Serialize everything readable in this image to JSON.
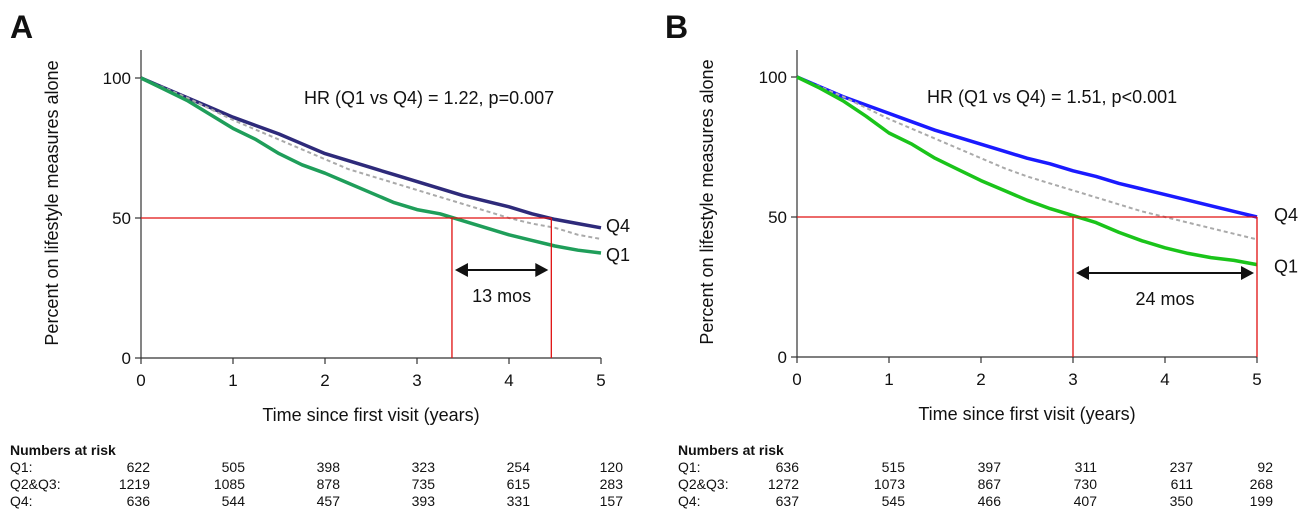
{
  "chart_data": [
    {
      "panel_label": "A",
      "type": "line",
      "xlabel": "Time since first visit (years)",
      "ylabel": "Percent on lifestyle measures alone",
      "xlim": [
        0,
        5
      ],
      "ylim": [
        0,
        100
      ],
      "xticks": [
        "0",
        "1",
        "2",
        "3",
        "4",
        "5"
      ],
      "yticks": [
        "0",
        "50",
        "100"
      ],
      "annotation": "HR (Q1 vs Q4) = 1.22, p=0.007",
      "median_line": {
        "y": 50,
        "x_q1": 3.38,
        "x_q4": 4.46,
        "label": "13 mos"
      },
      "series": [
        {
          "name": "Q4",
          "color": "#2e2a7a",
          "style": "solid",
          "x": [
            0,
            0.25,
            0.5,
            0.75,
            1,
            1.25,
            1.5,
            1.75,
            2,
            2.25,
            2.5,
            2.75,
            3,
            3.25,
            3.5,
            3.75,
            4,
            4.25,
            4.5,
            4.75,
            5
          ],
          "y": [
            100,
            96.5,
            93,
            89.5,
            86,
            83,
            80,
            76.5,
            73,
            70.5,
            68,
            65.5,
            63,
            60.5,
            58,
            56,
            54,
            51.5,
            49.5,
            48,
            46.5
          ]
        },
        {
          "name": "",
          "color": "#aaaaaa",
          "style": "dashed",
          "x": [
            0,
            0.25,
            0.5,
            0.75,
            1,
            1.25,
            1.5,
            1.75,
            2,
            2.25,
            2.5,
            2.75,
            3,
            3.25,
            3.5,
            3.75,
            4,
            4.25,
            4.5,
            4.75,
            5
          ],
          "y": [
            100,
            96.5,
            93,
            89,
            85,
            81.5,
            78,
            74.5,
            71,
            67.5,
            65,
            62.5,
            60,
            57.5,
            55,
            52.5,
            50,
            48,
            46.5,
            44,
            42.5
          ]
        },
        {
          "name": "Q1",
          "color": "#1f9e5a",
          "style": "solid",
          "x": [
            0,
            0.25,
            0.5,
            0.75,
            1,
            1.25,
            1.5,
            1.75,
            2,
            2.25,
            2.5,
            2.75,
            3,
            3.25,
            3.5,
            3.75,
            4,
            4.25,
            4.5,
            4.75,
            5
          ],
          "y": [
            100,
            96,
            92,
            87,
            82,
            78,
            73,
            69,
            66,
            62.5,
            59,
            55.5,
            53,
            51.5,
            49,
            46.5,
            44,
            42,
            40,
            38.5,
            37.5
          ]
        }
      ],
      "numbers_at_risk": {
        "title": "Numbers at risk",
        "rows": [
          {
            "label": "Q1:",
            "values": [
              "622",
              "505",
              "398",
              "323",
              "254",
              "120"
            ]
          },
          {
            "label": "Q2&Q3:",
            "values": [
              "1219",
              "1085",
              "878",
              "735",
              "615",
              "283"
            ]
          },
          {
            "label": "Q4:",
            "values": [
              "636",
              "544",
              "457",
              "393",
              "331",
              "157"
            ]
          }
        ]
      }
    },
    {
      "panel_label": "B",
      "type": "line",
      "xlabel": "Time since first visit (years)",
      "ylabel": "Percent on lifestyle measures alone",
      "xlim": [
        0,
        5
      ],
      "ylim": [
        0,
        100
      ],
      "xticks": [
        "0",
        "1",
        "2",
        "3",
        "4",
        "5"
      ],
      "yticks": [
        "0",
        "50",
        "100"
      ],
      "annotation": "HR (Q1 vs Q4) = 1.51, p<0.001",
      "median_line": {
        "y": 50,
        "x_q1": 3.0,
        "x_q4": 5.0,
        "label": "24 mos"
      },
      "series": [
        {
          "name": "Q4",
          "color": "#1a1aff",
          "style": "solid",
          "x": [
            0,
            0.25,
            0.5,
            0.75,
            1,
            1.25,
            1.5,
            1.75,
            2,
            2.25,
            2.5,
            2.75,
            3,
            3.25,
            3.5,
            3.75,
            4,
            4.25,
            4.5,
            4.75,
            5
          ],
          "y": [
            100,
            96.5,
            93,
            90,
            87,
            84,
            81,
            78.5,
            76,
            73.5,
            71,
            69,
            66.5,
            64.5,
            62,
            60,
            58,
            56,
            54,
            52,
            50
          ]
        },
        {
          "name": "",
          "color": "#aaaaaa",
          "style": "dashed",
          "x": [
            0,
            0.25,
            0.5,
            0.75,
            1,
            1.25,
            1.5,
            1.75,
            2,
            2.25,
            2.5,
            2.75,
            3,
            3.25,
            3.5,
            3.75,
            4,
            4.25,
            4.5,
            4.75,
            5
          ],
          "y": [
            100,
            96.5,
            93,
            89,
            85,
            81.5,
            78,
            74.5,
            71,
            67.5,
            64.5,
            62,
            59.5,
            57,
            54.5,
            52,
            50,
            48,
            46,
            44,
            42
          ]
        },
        {
          "name": "Q1",
          "color": "#1ac41a",
          "style": "solid",
          "x": [
            0,
            0.25,
            0.5,
            0.75,
            1,
            1.25,
            1.5,
            1.75,
            2,
            2.25,
            2.5,
            2.75,
            3,
            3.25,
            3.5,
            3.75,
            4,
            4.25,
            4.5,
            4.75,
            5
          ],
          "y": [
            100,
            96,
            91.5,
            86,
            80,
            76,
            71,
            67,
            63,
            59.5,
            56,
            53,
            50.5,
            48,
            44.5,
            41.5,
            39,
            37,
            35.5,
            34.5,
            33
          ]
        }
      ],
      "numbers_at_risk": {
        "title": "Numbers at risk",
        "rows": [
          {
            "label": "Q1:",
            "values": [
              "636",
              "515",
              "397",
              "311",
              "237",
              "92"
            ]
          },
          {
            "label": "Q2&Q3:",
            "values": [
              "1272",
              "1073",
              "867",
              "730",
              "611",
              "268"
            ]
          },
          {
            "label": "Q4:",
            "values": [
              "637",
              "545",
              "466",
              "407",
              "350",
              "199"
            ]
          }
        ]
      }
    }
  ]
}
